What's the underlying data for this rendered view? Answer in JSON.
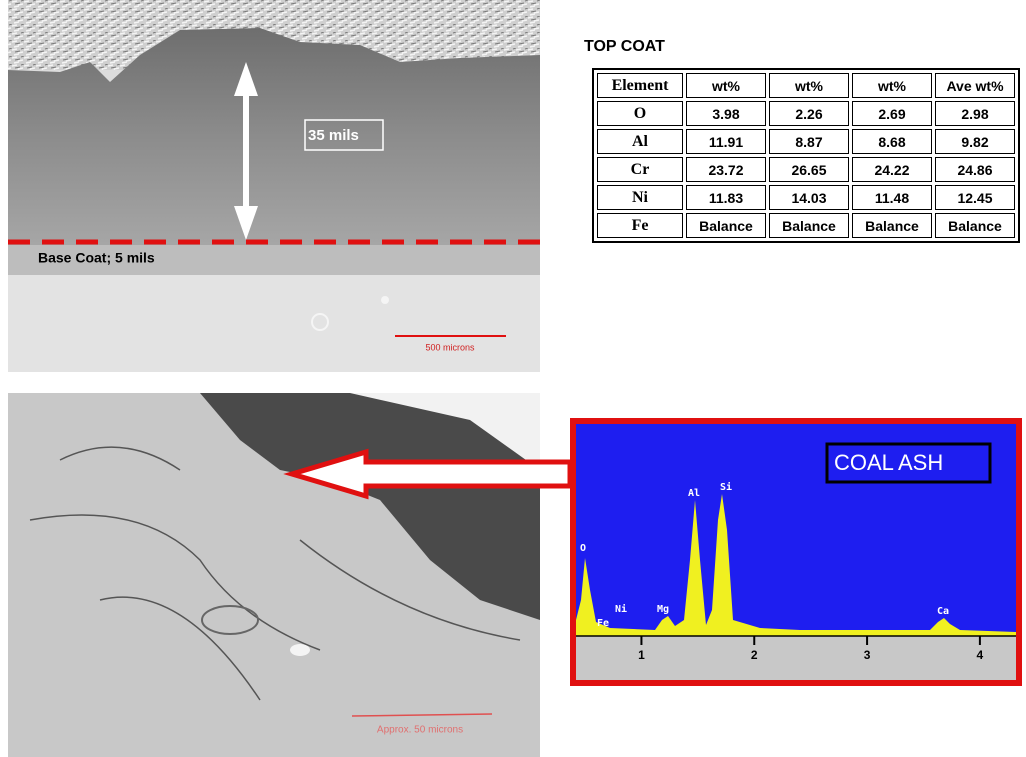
{
  "top_image": {
    "thickness_label": "35 mils",
    "base_coat_label": "Base Coat; 5 mils",
    "scale_label": "500 microns"
  },
  "table": {
    "title": "TOP COAT",
    "headers": [
      "Element",
      "wt%",
      "wt%",
      "wt%",
      "Ave wt%"
    ],
    "rows": [
      [
        "O",
        "3.98",
        "2.26",
        "2.69",
        "2.98"
      ],
      [
        "Al",
        "11.91",
        "8.87",
        "8.68",
        "9.82"
      ],
      [
        "Cr",
        "23.72",
        "26.65",
        "24.22",
        "24.86"
      ],
      [
        "Ni",
        "11.83",
        "14.03",
        "11.48",
        "12.45"
      ],
      [
        "Fe",
        "Balance",
        "Balance",
        "Balance",
        "Balance"
      ]
    ]
  },
  "bottom_image": {
    "scale_label": "Approx. 50 microns"
  },
  "spectrum": {
    "label": "COAL ASH",
    "peaks": [
      "O",
      "Fe",
      "Ni",
      "Mg",
      "Al",
      "Si",
      "Ca"
    ],
    "xlim": [
      0.42,
      4.32
    ],
    "xticks": [
      1,
      2,
      3,
      4
    ]
  }
}
